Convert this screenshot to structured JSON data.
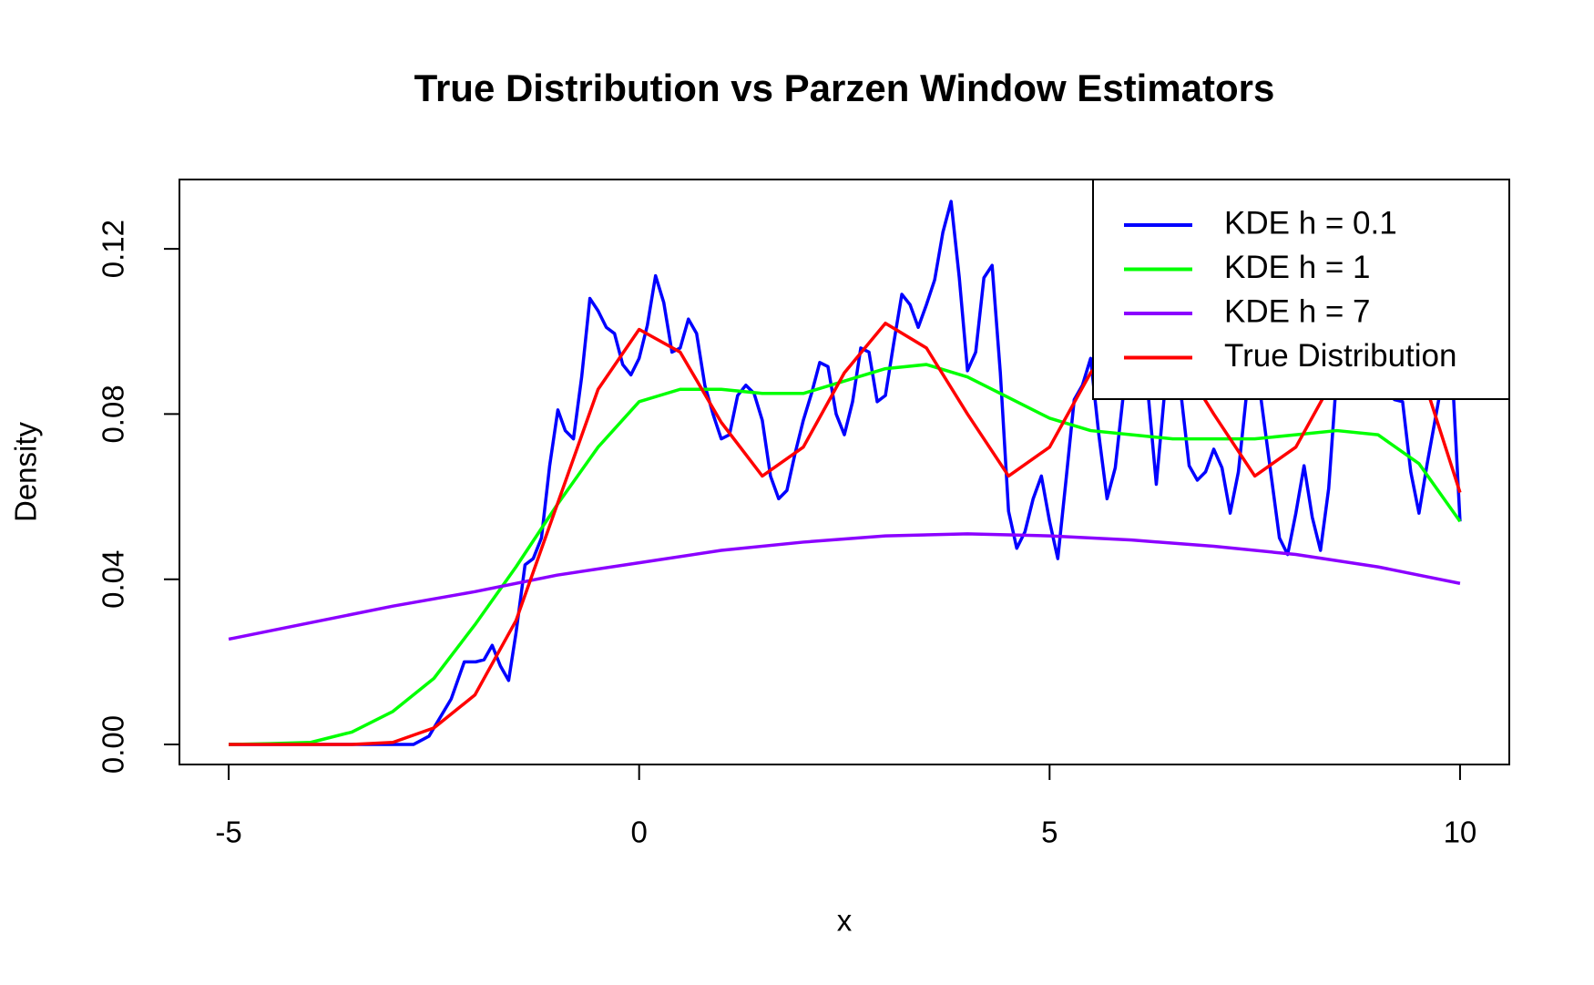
{
  "chart_data": {
    "type": "line",
    "title": "True Distribution vs Parzen Window Estimators",
    "x_label": "x",
    "y_label": "Density",
    "xlim": [
      -5.6,
      10.6
    ],
    "ylim": [
      -0.00485,
      0.1368
    ],
    "xticks": [
      -5,
      0,
      5,
      10
    ],
    "yticks": [
      {
        "value": 0,
        "label": "0.00"
      },
      {
        "value": 0.04,
        "label": "0.04"
      },
      {
        "value": 0.08,
        "label": "0.08"
      },
      {
        "value": 0.12,
        "label": "0.12"
      }
    ],
    "legend": "top-right",
    "series": [
      {
        "name": "KDE h = 0.1",
        "color": "#0000ff",
        "x": [
          -5,
          -3,
          -2.75,
          -2.56,
          -2.41,
          -2.29,
          -2.13,
          -1.99,
          -1.89,
          -1.79,
          -1.69,
          -1.59,
          -1.5,
          -1.39,
          -1.29,
          -1.19,
          -1.09,
          -0.99,
          -0.9,
          -0.8,
          -0.7,
          -0.6,
          -0.5,
          -0.4,
          -0.3,
          -0.2,
          -0.1,
          0,
          0.1,
          0.2,
          0.3,
          0.4,
          0.5,
          0.6,
          0.7,
          0.8,
          0.9,
          1.0,
          1.1,
          1.2,
          1.3,
          1.4,
          1.5,
          1.6,
          1.7,
          1.8,
          1.9,
          2.0,
          2.1,
          2.2,
          2.3,
          2.4,
          2.5,
          2.6,
          2.7,
          2.8,
          2.9,
          3.0,
          3.1,
          3.2,
          3.3,
          3.4,
          3.5,
          3.6,
          3.7,
          3.8,
          3.9,
          4.0,
          4.1,
          4.2,
          4.3,
          4.4,
          4.5,
          4.6,
          4.7,
          4.8,
          4.9,
          5.0,
          5.1,
          5.2,
          5.3,
          5.4,
          5.5,
          5.6,
          5.7,
          5.8,
          5.9,
          6.0,
          6.1,
          6.2,
          6.3,
          6.4,
          6.5,
          6.6,
          6.7,
          6.8,
          6.9,
          7.0,
          7.1,
          7.2,
          7.3,
          7.4,
          7.5,
          7.6,
          7.7,
          7.8,
          7.9,
          8.0,
          8.1,
          8.2,
          8.3,
          8.4,
          8.5,
          8.6,
          8.7,
          8.8,
          8.9,
          9.0,
          9.1,
          9.2,
          9.3,
          9.4,
          9.5,
          9.6,
          9.7,
          9.8,
          9.9,
          10.0
        ],
        "values": [
          0,
          0,
          0,
          0.002,
          0.007,
          0.011,
          0.02,
          0.02,
          0.0205,
          0.024,
          0.019,
          0.0155,
          0.027,
          0.0435,
          0.045,
          0.05,
          0.0675,
          0.081,
          0.076,
          0.074,
          0.089,
          0.108,
          0.105,
          0.101,
          0.0995,
          0.092,
          0.0895,
          0.0935,
          0.1015,
          0.1135,
          0.107,
          0.095,
          0.096,
          0.103,
          0.0995,
          0.087,
          0.08,
          0.074,
          0.075,
          0.0845,
          0.087,
          0.085,
          0.0785,
          0.065,
          0.0595,
          0.0615,
          0.0705,
          0.0785,
          0.085,
          0.0925,
          0.0915,
          0.08,
          0.075,
          0.083,
          0.096,
          0.095,
          0.083,
          0.0845,
          0.097,
          0.109,
          0.1065,
          0.101,
          0.1065,
          0.1125,
          0.124,
          0.1315,
          0.113,
          0.0905,
          0.095,
          0.113,
          0.116,
          0.09,
          0.0565,
          0.0475,
          0.0515,
          0.0595,
          0.065,
          0.054,
          0.045,
          0.064,
          0.0835,
          0.087,
          0.0935,
          0.075,
          0.0595,
          0.067,
          0.085,
          0.095,
          0.09,
          0.085,
          0.063,
          0.085,
          0.095,
          0.085,
          0.0675,
          0.064,
          0.066,
          0.0715,
          0.067,
          0.056,
          0.066,
          0.085,
          0.095,
          0.08,
          0.065,
          0.05,
          0.046,
          0.056,
          0.0675,
          0.055,
          0.047,
          0.062,
          0.09,
          0.1,
          0.1,
          0.095,
          0.095,
          0.09,
          0.088,
          0.0835,
          0.083,
          0.066,
          0.056,
          0.068,
          0.079,
          0.09,
          0.092,
          0.054
        ]
      },
      {
        "name": "KDE h = 1",
        "color": "#00ff00",
        "x": [
          -5,
          -4.5,
          -4,
          -3.5,
          -3,
          -2.5,
          -2,
          -1.5,
          -1,
          -0.5,
          0,
          0.5,
          1,
          1.5,
          2,
          2.5,
          3,
          3.5,
          4,
          4.5,
          5,
          5.5,
          6,
          6.5,
          7,
          7.5,
          8,
          8.5,
          9,
          9.5,
          10
        ],
        "values": [
          0,
          0.0002,
          0.0005,
          0.003,
          0.008,
          0.016,
          0.029,
          0.043,
          0.058,
          0.072,
          0.083,
          0.086,
          0.086,
          0.085,
          0.085,
          0.088,
          0.091,
          0.092,
          0.089,
          0.084,
          0.079,
          0.076,
          0.075,
          0.074,
          0.074,
          0.074,
          0.075,
          0.076,
          0.075,
          0.068,
          0.054
        ]
      },
      {
        "name": "KDE h = 7",
        "color": "#8b00ff",
        "x": [
          -5,
          -4,
          -3,
          -2,
          -1,
          0,
          1,
          2,
          3,
          4,
          5,
          6,
          7,
          8,
          9,
          10
        ],
        "values": [
          0.0255,
          0.0295,
          0.0335,
          0.037,
          0.041,
          0.044,
          0.047,
          0.049,
          0.0505,
          0.051,
          0.0505,
          0.0495,
          0.048,
          0.046,
          0.043,
          0.039
        ]
      },
      {
        "name": "True Distribution",
        "color": "#ff0000",
        "x": [
          -5,
          -4.5,
          -4,
          -3.5,
          -3,
          -2.5,
          -2,
          -1.5,
          -1,
          -0.5,
          0,
          0.5,
          1,
          1.5,
          2,
          2.5,
          3,
          3.5,
          4,
          4.5,
          5,
          5.5,
          6,
          6.5,
          7,
          7.5,
          8,
          8.5,
          9,
          9.5,
          10
        ],
        "values": [
          0,
          0,
          0,
          0,
          0.0005,
          0.004,
          0.012,
          0.03,
          0.058,
          0.086,
          0.1005,
          0.095,
          0.078,
          0.065,
          0.072,
          0.09,
          0.102,
          0.096,
          0.08,
          0.065,
          0.072,
          0.09,
          0.101,
          0.096,
          0.08,
          0.065,
          0.072,
          0.09,
          0.101,
          0.092,
          0.061
        ]
      }
    ]
  }
}
